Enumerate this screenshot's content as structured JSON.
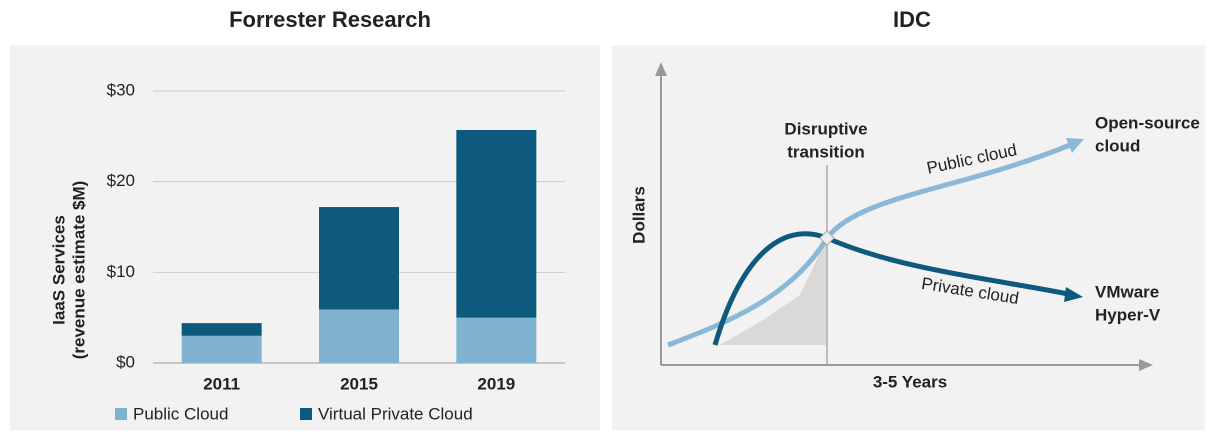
{
  "chart_data": [
    {
      "type": "bar",
      "stacked": true,
      "title": "Forrester Research",
      "ylabel": [
        "IaaS Services",
        "(revenue estimate $M)"
      ],
      "categories": [
        "2011",
        "2015",
        "2019"
      ],
      "series": [
        {
          "name": "Public Cloud",
          "color": "#7fb3d0",
          "values": [
            3,
            5.9,
            5
          ]
        },
        {
          "name": "Virtual Private Cloud",
          "color": "#0e5a7e",
          "values": [
            1.4,
            11.3,
            20.7
          ]
        }
      ],
      "ylim": [
        0,
        30
      ],
      "yticks": [
        {
          "value": 0,
          "label": "$0"
        },
        {
          "value": 10,
          "label": "$10"
        },
        {
          "value": 20,
          "label": "$20"
        },
        {
          "value": 30,
          "label": "$30"
        }
      ],
      "grid": true,
      "legend": "bottom"
    },
    {
      "type": "diagram",
      "title": "IDC",
      "ylabel": "Dollars",
      "xlabel": "3-5 Years",
      "transition_label": [
        "Disruptive",
        "transition"
      ],
      "public_label": "Public cloud",
      "private_label": "Private  cloud",
      "public_end": [
        "Open-source",
        "cloud"
      ],
      "private_end": [
        "VMware",
        "Hyper-V"
      ]
    }
  ]
}
